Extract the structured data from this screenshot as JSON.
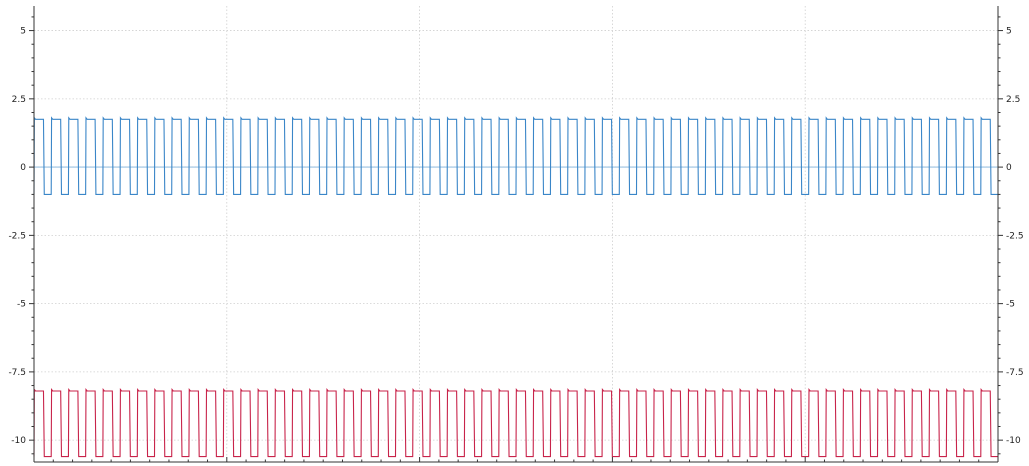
{
  "chart_data": {
    "type": "line",
    "title": "",
    "xlabel": "",
    "ylabel": "",
    "ylim": [
      -10.8,
      5.9
    ],
    "xlim": [
      0,
      56
    ],
    "x_ticks_labeled": false,
    "y_ticks": [
      5,
      2.5,
      0,
      -2.5,
      -5,
      -7.5,
      -10
    ],
    "y_tick_labels": [
      "5",
      "2.5",
      "0",
      "-2.5",
      "-5",
      "-7.5",
      "-10"
    ],
    "grid": true,
    "legend": "none",
    "colors": {
      "series_1": "#3a86c8",
      "series_1_baseline": "#7fb1d8",
      "series_2": "#c8234a",
      "grid": "#cfcfcf",
      "axis": "#333333"
    },
    "series": [
      {
        "waveform": "square",
        "high": 1.75,
        "low": -1.0,
        "baseline": 0,
        "cycles": 56,
        "duty_cycle": 0.55
      },
      {
        "waveform": "square",
        "high": -8.2,
        "low": -10.6,
        "cycles": 56,
        "duty_cycle": 0.55
      }
    ]
  }
}
